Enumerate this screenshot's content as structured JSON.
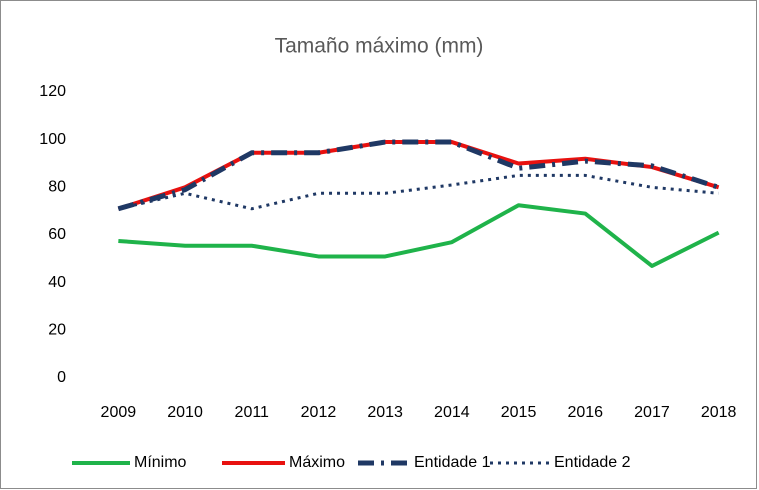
{
  "chart_data": {
    "type": "line",
    "title": "Tamaño máximo (mm)",
    "categories": [
      "2009",
      "2010",
      "2011",
      "2012",
      "2013",
      "2014",
      "2015",
      "2016",
      "2017",
      "2018"
    ],
    "series": [
      {
        "name": "Mínimo",
        "color": "#1fb34a",
        "style": "solid",
        "values": [
          57.5,
          55.5,
          55.5,
          51,
          51,
          57,
          72.5,
          69,
          47,
          61
        ]
      },
      {
        "name": "Máximo",
        "color": "#e8110f",
        "style": "solid",
        "values": [
          71,
          80,
          94.5,
          94.5,
          99,
          99,
          90,
          92,
          88.5,
          80
        ]
      },
      {
        "name": "Entidade 1",
        "color": "#1f3864",
        "style": "dashdot",
        "values": [
          71,
          79,
          94.5,
          94.5,
          99,
          99,
          88,
          91,
          89,
          80
        ]
      },
      {
        "name": "Entidade 2",
        "color": "#1f3864",
        "style": "dotted",
        "values": [
          71,
          77.5,
          71,
          77.5,
          77.5,
          81,
          85,
          85,
          80,
          77.5
        ]
      }
    ],
    "ylim": [
      0,
      120
    ],
    "yticks": [
      0,
      20,
      40,
      60,
      80,
      100,
      120
    ],
    "grid": false,
    "legend": "bottom"
  }
}
